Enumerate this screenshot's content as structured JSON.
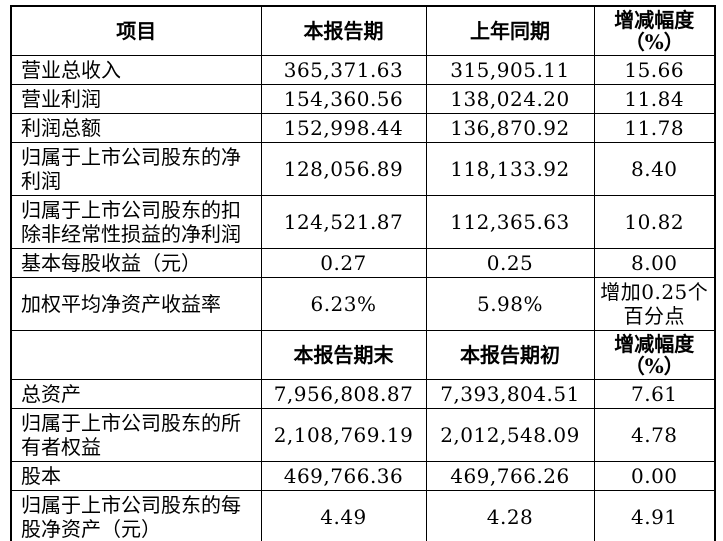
{
  "page": {
    "background_color": "#ffffff",
    "text_color": "#000000",
    "border_color": "#000000"
  },
  "table": {
    "sections": [
      {
        "header": [
          "项目",
          "本报告期",
          "上年同期",
          "增减幅度\n（%）"
        ],
        "rows": [
          [
            "营业总收入",
            "365,371.63",
            "315,905.11",
            "15.66"
          ],
          [
            "营业利润",
            "154,360.56",
            "138,024.20",
            "11.84"
          ],
          [
            "利润总额",
            "152,998.44",
            "136,870.92",
            "11.78"
          ],
          [
            "归属于上市公司股东的净利润",
            "128,056.89",
            "118,133.92",
            "8.40"
          ],
          [
            "归属于上市公司股东的扣除非经常性损益的净利润",
            "124,521.87",
            "112,365.63",
            "10.82"
          ],
          [
            "基本每股收益（元）",
            "0.27",
            "0.25",
            "8.00"
          ],
          [
            "加权平均净资产收益率",
            "6.23%",
            "5.98%",
            "增加0.25个百分点"
          ]
        ]
      },
      {
        "header": [
          "",
          "本报告期末",
          "本报告期初",
          "增减幅度\n（%）"
        ],
        "rows": [
          [
            "总资产",
            "7,956,808.87",
            "7,393,804.51",
            "7.61"
          ],
          [
            "归属于上市公司股东的所有者权益",
            "2,108,769.19",
            "2,012,548.09",
            "4.78"
          ],
          [
            "股本",
            "469,766.36",
            "469,766.26",
            "0.00"
          ],
          [
            "归属于上市公司股东的每股净资产（元）",
            "4.49",
            "4.28",
            "4.91"
          ]
        ]
      }
    ]
  }
}
